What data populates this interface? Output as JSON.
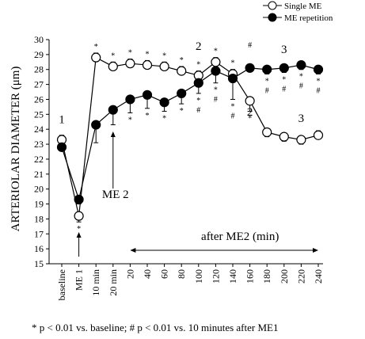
{
  "chart_data": {
    "type": "line",
    "ylabel": "ARTERIOLAR DIAMETER (μm)",
    "ylim": [
      15,
      30
    ],
    "yticks": [
      15,
      16,
      17,
      18,
      19,
      20,
      21,
      22,
      23,
      24,
      25,
      26,
      27,
      28,
      29,
      30
    ],
    "categories": [
      "baseline",
      "ME 1",
      "10 min",
      "20 min",
      "20",
      "40",
      "60",
      "80",
      "100",
      "120",
      "140",
      "160",
      "180",
      "200",
      "220",
      "240"
    ],
    "legend": {
      "position": "top-right"
    },
    "series": [
      {
        "name": "Single ME",
        "marker": "open",
        "values": [
          23.3,
          18.2,
          28.8,
          28.2,
          28.4,
          28.3,
          28.2,
          27.9,
          27.6,
          28.5,
          27.7,
          25.9,
          23.8,
          23.5,
          23.3,
          23.6
        ],
        "error_sign": [
          1,
          -1,
          1,
          1,
          1,
          1,
          1,
          1,
          1,
          1,
          1,
          -1,
          -1,
          -1,
          -1,
          1
        ],
        "errors": [
          0.3,
          0.4,
          0.3,
          0.3,
          0.3,
          0.3,
          0.3,
          0.3,
          0.3,
          0.3,
          0.3,
          0.7,
          0.3,
          0.3,
          0.3,
          0.3
        ],
        "sig": [
          "",
          "*",
          "*",
          "*",
          "*",
          "*",
          "*",
          "*",
          "*",
          "*",
          "*",
          "*",
          "",
          "",
          "",
          ""
        ]
      },
      {
        "name": "ME repetition",
        "marker": "filled",
        "values": [
          22.8,
          19.3,
          24.3,
          25.3,
          26.0,
          26.3,
          25.8,
          26.4,
          27.1,
          27.9,
          27.4,
          28.1,
          28.0,
          28.1,
          28.3,
          28.0
        ],
        "error_sign": [
          1,
          -1,
          -1,
          -1,
          -1,
          -1,
          -1,
          -1,
          -1,
          -1,
          -1,
          1,
          -1,
          -1,
          -1,
          -1
        ],
        "errors": [
          0.3,
          0.3,
          1.2,
          1.0,
          0.9,
          0.9,
          0.6,
          0.7,
          0.7,
          0.8,
          1.4,
          0.2,
          0.3,
          0.3,
          0.3,
          0.3
        ],
        "sig": [
          "",
          "",
          "",
          "",
          "*",
          "*",
          "*",
          "*",
          "*",
          "*",
          "*",
          "",
          "*",
          "*",
          "*",
          "*"
        ]
      }
    ],
    "hash_marks": [
      {
        "index": 8,
        "position": "below"
      },
      {
        "index": 9,
        "position": "below"
      },
      {
        "index": 10,
        "position": "below"
      },
      {
        "index": 11,
        "position": "above"
      },
      {
        "index": 12,
        "position": "below"
      },
      {
        "index": 13,
        "position": "below"
      },
      {
        "index": 14,
        "position": "below"
      },
      {
        "index": 15,
        "position": "below"
      }
    ],
    "annotations": [
      {
        "text": "1",
        "index": 0,
        "y": 24.4
      },
      {
        "text": "2",
        "index": 8,
        "y": 29.3
      },
      {
        "text": "3",
        "index": 13,
        "y": 29.1
      },
      {
        "text": "2",
        "index": 11,
        "y": 24.9
      },
      {
        "text": "3",
        "index": 14,
        "y": 24.5
      }
    ],
    "arrow_labels": {
      "me2": "ME 2",
      "after_me2": "after ME2 (min)"
    },
    "sig_symbols": {
      "star": "*",
      "hash": "#"
    },
    "footnote": "* p < 0.01 vs. baseline;  # p < 0.01 vs. 10 minutes  after ME1"
  }
}
